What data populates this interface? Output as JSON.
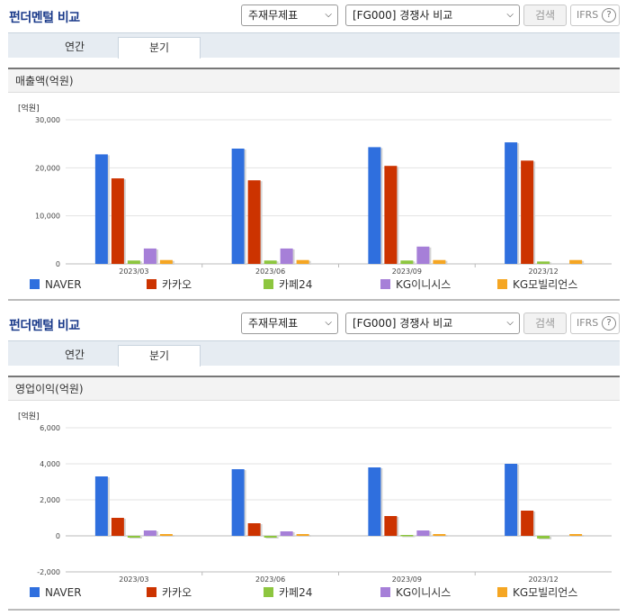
{
  "series_colors": [
    "#2f6fde",
    "#cc3300",
    "#8dc63f",
    "#a67fd8",
    "#f5a623"
  ],
  "sections": [
    {
      "title": "펀더멘털 비교",
      "select1": "주재무제표",
      "select2": "[FG000] 경쟁사 비교",
      "search_label": "검색",
      "ifrs_label": "IFRS",
      "help_label": "?",
      "tabs": [
        {
          "label": "연간"
        },
        {
          "label": "분기"
        }
      ],
      "metric_label": "매출액(억원)"
    },
    {
      "title": "펀더멘털 비교",
      "select1": "주재무제표",
      "select2": "[FG000] 경쟁사 비교",
      "search_label": "검색",
      "ifrs_label": "IFRS",
      "help_label": "?",
      "tabs": [
        {
          "label": "연간"
        },
        {
          "label": "분기"
        }
      ],
      "metric_label": "영업이익(억원)"
    }
  ],
  "chart_data": [
    {
      "type": "bar",
      "unit_label": "[억원]",
      "categories": [
        "2023/03",
        "2023/06",
        "2023/09",
        "2023/12"
      ],
      "ylim": [
        0,
        30000
      ],
      "yticks": [
        0,
        10000,
        20000,
        30000
      ],
      "ytick_labels": [
        "0",
        "10,000",
        "20,000",
        "30,000"
      ],
      "grid": true,
      "legend": "bottom",
      "series": [
        {
          "name": "NAVER",
          "values": [
            22800,
            24000,
            24300,
            25300
          ]
        },
        {
          "name": "카카오",
          "values": [
            17800,
            17400,
            20400,
            21500
          ]
        },
        {
          "name": "카페24",
          "values": [
            700,
            700,
            700,
            500
          ]
        },
        {
          "name": "KG이니시스",
          "values": [
            3200,
            3200,
            3600,
            null
          ]
        },
        {
          "name": "KG모빌리언스",
          "values": [
            800,
            800,
            800,
            800
          ]
        }
      ]
    },
    {
      "type": "bar",
      "unit_label": "[억원]",
      "categories": [
        "2023/03",
        "2023/06",
        "2023/09",
        "2023/12"
      ],
      "ylim": [
        -2000,
        6000
      ],
      "yticks": [
        -2000,
        0,
        2000,
        4000,
        6000
      ],
      "ytick_labels": [
        "-2,000",
        "0",
        "2,000",
        "4,000",
        "6,000"
      ],
      "grid": true,
      "legend": "bottom",
      "series": [
        {
          "name": "NAVER",
          "values": [
            3300,
            3700,
            3800,
            4000
          ]
        },
        {
          "name": "카카오",
          "values": [
            1000,
            700,
            1100,
            1400
          ]
        },
        {
          "name": "카페24",
          "values": [
            -100,
            -100,
            50,
            -150
          ]
        },
        {
          "name": "KG이니시스",
          "values": [
            300,
            250,
            300,
            null
          ]
        },
        {
          "name": "KG모빌리언스",
          "values": [
            100,
            100,
            100,
            100
          ]
        }
      ]
    }
  ]
}
